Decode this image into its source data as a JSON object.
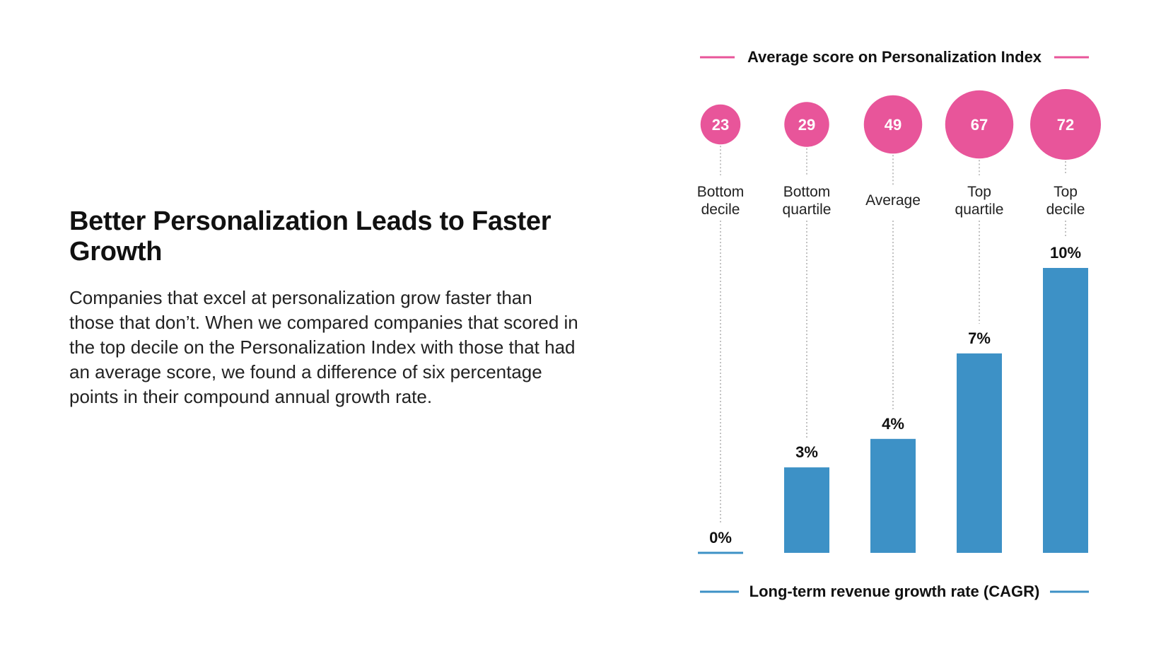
{
  "article": {
    "title": "Better Personalization Leads to Faster Growth",
    "body": "Companies that excel at personalization grow faster than those that don’t. When we compared companies that scored in the top decile on the Personalization Index with those that had an average score, we found a difference of six percentage points in their compound annual growth rate."
  },
  "chart_data": {
    "type": "bar",
    "top_legend": "Average score on Personalization Index",
    "bottom_legend": "Long-term revenue growth rate (CAGR)",
    "categories": [
      [
        "Bottom",
        "decile"
      ],
      [
        "Bottom",
        "quartile"
      ],
      [
        "Average"
      ],
      [
        "Top",
        "quartile"
      ],
      [
        "Top",
        "decile"
      ]
    ],
    "scores": [
      23,
      29,
      49,
      67,
      72
    ],
    "values": [
      0,
      3,
      4,
      7,
      10
    ],
    "value_labels": [
      "0%",
      "3%",
      "4%",
      "7%",
      "10%"
    ],
    "ylim": [
      0,
      10
    ],
    "grid": false,
    "colors": {
      "score": "#e8559a",
      "bar": "#3d91c6",
      "text": "#111111",
      "dots": "#9a9a9a"
    }
  }
}
